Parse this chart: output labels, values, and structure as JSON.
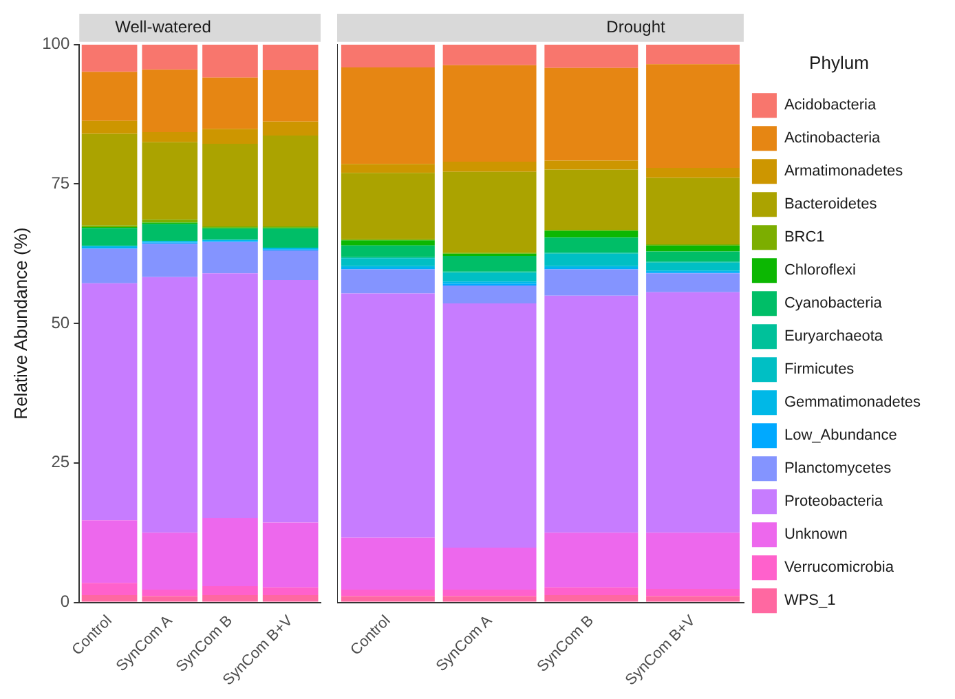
{
  "chart_data": [
    {
      "type": "bar",
      "title": "Well-watered",
      "ylabel": "Relative Abundance (%)",
      "stacked": true,
      "grid": false,
      "ylim": [
        0,
        100
      ],
      "yticks": [
        0,
        25,
        50,
        75,
        100
      ],
      "categories": [
        "Control",
        "SynCom A",
        "SynCom B",
        "SynCom B+V"
      ],
      "series": [
        {
          "color": "#ff68a1",
          "values": [
            1.3,
            1.1,
            1.3,
            1.3
          ]
        },
        {
          "color": "#ff61cc",
          "values": [
            2.2,
            1.2,
            1.6,
            1.4
          ]
        },
        {
          "color": "#ed68ed",
          "values": [
            11.2,
            10.2,
            12.2,
            11.6
          ]
        },
        {
          "color": "#c77cff",
          "values": [
            42.5,
            45.8,
            43.9,
            43.5
          ]
        },
        {
          "color": "#8494ff",
          "values": [
            6.2,
            6.0,
            5.6,
            5.3
          ]
        },
        {
          "color": "#00a9ff",
          "values": [
            0.2,
            0.2,
            0.2,
            0.2
          ]
        },
        {
          "color": "#00b8e7",
          "values": [
            0.3,
            0.3,
            0.2,
            0.3
          ]
        },
        {
          "color": "#00bfc4",
          "values": [
            0,
            0,
            0,
            0
          ]
        },
        {
          "color": "#00c19a",
          "values": [
            0,
            0,
            0,
            0
          ]
        },
        {
          "color": "#00be67",
          "values": [
            3.2,
            3.0,
            2.0,
            3.4
          ]
        },
        {
          "color": "#0cb702",
          "values": [
            0.2,
            0.3,
            0.2,
            0.2
          ]
        },
        {
          "color": "#7cae00",
          "values": [
            0.3,
            0.5,
            0.2,
            0.2
          ]
        },
        {
          "color": "#aba300",
          "values": [
            16.4,
            13.9,
            14.8,
            16.3
          ]
        },
        {
          "color": "#cd9600",
          "values": [
            2.3,
            1.8,
            2.7,
            2.5
          ]
        },
        {
          "color": "#e68613",
          "values": [
            8.8,
            11.2,
            9.2,
            9.2
          ]
        },
        {
          "color": "#f8766d",
          "values": [
            4.9,
            4.5,
            5.9,
            4.6
          ]
        }
      ]
    },
    {
      "type": "bar",
      "title": "Drought",
      "stacked": true,
      "grid": false,
      "tick_labels": "x",
      "legend": "right",
      "legend_title": "Phylum",
      "ylim": [
        0,
        100
      ],
      "yticks": [
        0,
        25,
        50,
        75,
        100
      ],
      "categories": [
        "Control",
        "SynCom A",
        "SynCom B",
        "SynCom B+V"
      ],
      "series": [
        {
          "name": "WPS_1",
          "color": "#ff68a1",
          "values": [
            1.1,
            1.1,
            1.3,
            1.1
          ]
        },
        {
          "name": "Verrucomicrobia",
          "color": "#ff61cc",
          "values": [
            1.2,
            1.2,
            1.4,
            1.3
          ]
        },
        {
          "name": "Unknown",
          "color": "#ed68ed",
          "values": [
            9.3,
            7.5,
            9.8,
            10.1
          ]
        },
        {
          "name": "Proteobacteria",
          "color": "#c77cff",
          "values": [
            43.8,
            43.8,
            42.5,
            43.1
          ]
        },
        {
          "name": "Planctomycetes",
          "color": "#8494ff",
          "values": [
            4.3,
            3.2,
            4.7,
            3.4
          ]
        },
        {
          "name": "Low_Abundance",
          "color": "#00a9ff",
          "values": [
            0.2,
            0.3,
            0.2,
            0.2
          ]
        },
        {
          "name": "Gemmatimonadetes",
          "color": "#00b8e7",
          "values": [
            0.4,
            0.4,
            0.4,
            0.3
          ]
        },
        {
          "name": "Firmicutes",
          "color": "#00bfc4",
          "values": [
            1.4,
            1.6,
            2.2,
            1.4
          ]
        },
        {
          "name": "Euryarchaeota",
          "color": "#00c19a",
          "values": [
            0.2,
            0.2,
            0.2,
            0.2
          ]
        },
        {
          "name": "Cyanobacteria",
          "color": "#00be67",
          "values": [
            2.1,
            2.8,
            2.7,
            1.8
          ]
        },
        {
          "name": "Chloroflexi",
          "color": "#0cb702",
          "values": [
            0.9,
            0.4,
            1.2,
            1.1
          ]
        },
        {
          "name": "BRC1",
          "color": "#7cae00",
          "values": [
            0.2,
            0.2,
            0.2,
            0.2
          ]
        },
        {
          "name": "Bacteroidetes",
          "color": "#aba300",
          "values": [
            11.9,
            14.5,
            10.8,
            11.9
          ]
        },
        {
          "name": "Armatimonadetes",
          "color": "#cd9600",
          "values": [
            1.6,
            1.8,
            1.6,
            1.8
          ]
        },
        {
          "name": "Actinobacteria",
          "color": "#e68613",
          "values": [
            17.3,
            17.3,
            16.6,
            18.6
          ]
        },
        {
          "name": "Acidobacteria",
          "color": "#f8766d",
          "values": [
            4.1,
            3.7,
            4.2,
            3.5
          ]
        }
      ]
    }
  ]
}
